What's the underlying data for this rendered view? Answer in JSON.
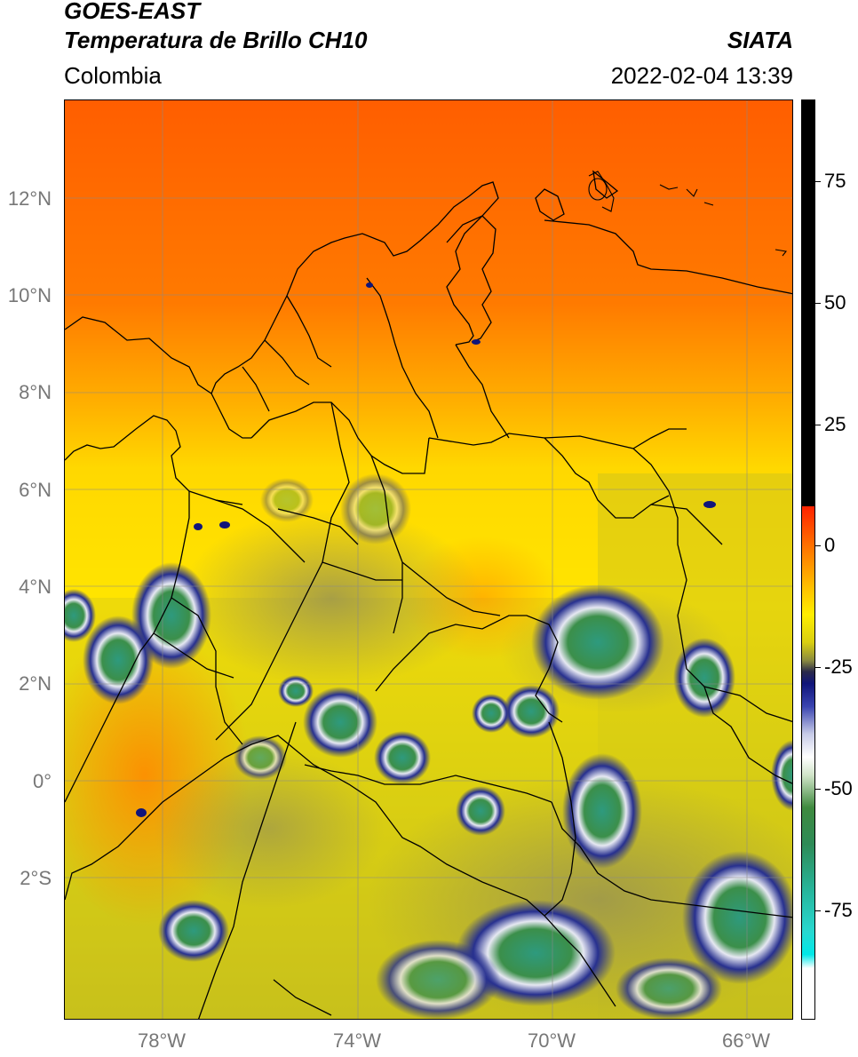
{
  "header": {
    "satellite": "GOES-EAST",
    "product": "Temperatura de Brillo CH10",
    "agency": "SIATA",
    "region": "Colombia",
    "datetime": "2022-02-04 13:39"
  },
  "map": {
    "lat_labels": [
      "12°N",
      "10°N",
      "8°N",
      "6°N",
      "4°N",
      "2°N",
      "0°",
      "2°S"
    ],
    "lon_labels": [
      "78°W",
      "74°W",
      "70°W",
      "66°W"
    ],
    "gridlines": true
  },
  "colorbar": {
    "labels": [
      "75",
      "50",
      "25",
      "0",
      "-25",
      "-50",
      "-75"
    ],
    "colors": {
      "warm": "#ff6a00",
      "mid": "#ffe500",
      "cool": "#b5b22a",
      "cold": "#1a1f8c",
      "coldest": "#2e9a82"
    }
  }
}
